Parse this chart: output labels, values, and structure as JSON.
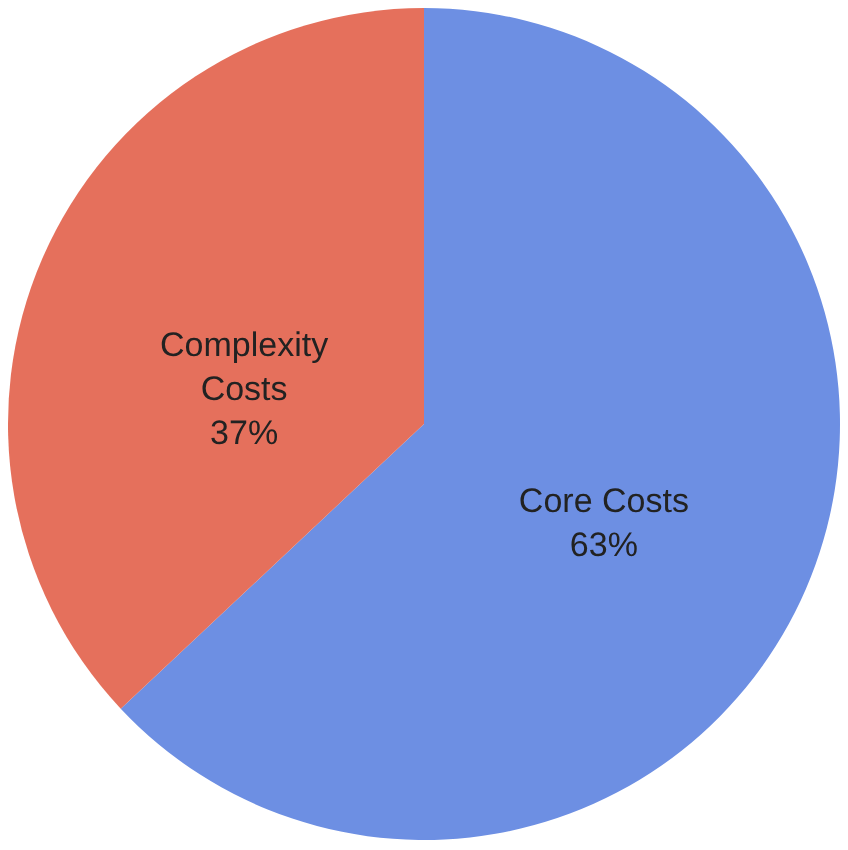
{
  "chart_data": {
    "type": "pie",
    "categories": [
      "Core Costs",
      "Complexity Costs"
    ],
    "values": [
      63,
      37
    ],
    "colors": [
      "#6d8fe3",
      "#e5705c"
    ],
    "value_labels": [
      "63%",
      "37%"
    ]
  }
}
